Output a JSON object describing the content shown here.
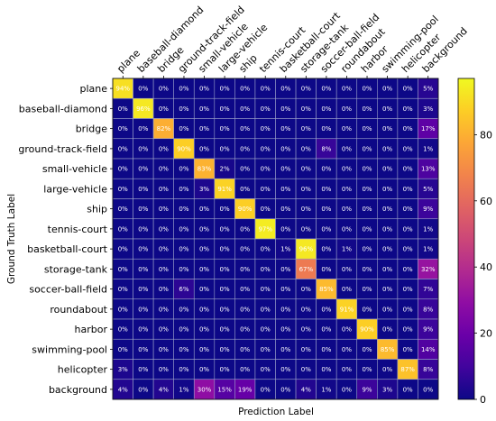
{
  "chart_data": {
    "type": "heatmap",
    "title": "",
    "xlabel": "Prediction Label",
    "ylabel": "Ground Truth Label",
    "classes": [
      "plane",
      "baseball-diamond",
      "bridge",
      "ground-track-field",
      "small-vehicle",
      "large-vehicle",
      "ship",
      "tennis-court",
      "basketball-court",
      "storage-tank",
      "soccer-ball-field",
      "roundabout",
      "harbor",
      "swimming-pool",
      "helicopter",
      "background"
    ],
    "values": [
      [
        94,
        0,
        0,
        0,
        0,
        0,
        0,
        0,
        0,
        0,
        0,
        0,
        0,
        0,
        0,
        5
      ],
      [
        0,
        96,
        0,
        0,
        0,
        0,
        0,
        0,
        0,
        0,
        0,
        0,
        0,
        0,
        0,
        3
      ],
      [
        0,
        0,
        82,
        0,
        0,
        0,
        0,
        0,
        0,
        0,
        0,
        0,
        0,
        0,
        0,
        17
      ],
      [
        0,
        0,
        0,
        90,
        0,
        0,
        0,
        0,
        0,
        0,
        8,
        0,
        0,
        0,
        0,
        1
      ],
      [
        0,
        0,
        0,
        0,
        83,
        2,
        0,
        0,
        0,
        0,
        0,
        0,
        0,
        0,
        0,
        13
      ],
      [
        0,
        0,
        0,
        0,
        3,
        91,
        0,
        0,
        0,
        0,
        0,
        0,
        0,
        0,
        0,
        5
      ],
      [
        0,
        0,
        0,
        0,
        0,
        0,
        90,
        0,
        0,
        0,
        0,
        0,
        0,
        0,
        0,
        9
      ],
      [
        0,
        0,
        0,
        0,
        0,
        0,
        0,
        97,
        0,
        0,
        0,
        0,
        0,
        0,
        0,
        1
      ],
      [
        0,
        0,
        0,
        0,
        0,
        0,
        0,
        0,
        1,
        96,
        0,
        1,
        0,
        0,
        0,
        1
      ],
      [
        0,
        0,
        0,
        0,
        0,
        0,
        0,
        0,
        0,
        67,
        0,
        0,
        0,
        0,
        0,
        32
      ],
      [
        0,
        0,
        0,
        6,
        0,
        0,
        0,
        0,
        0,
        0,
        85,
        0,
        0,
        0,
        0,
        7
      ],
      [
        0,
        0,
        0,
        0,
        0,
        0,
        0,
        0,
        0,
        0,
        0,
        91,
        0,
        0,
        0,
        8
      ],
      [
        0,
        0,
        0,
        0,
        0,
        0,
        0,
        0,
        0,
        0,
        0,
        0,
        90,
        0,
        0,
        9
      ],
      [
        0,
        0,
        0,
        0,
        0,
        0,
        0,
        0,
        0,
        0,
        0,
        0,
        0,
        85,
        0,
        14
      ],
      [
        3,
        0,
        0,
        0,
        0,
        0,
        0,
        0,
        0,
        0,
        0,
        0,
        0,
        0,
        87,
        8
      ],
      [
        4,
        0,
        4,
        1,
        30,
        15,
        19,
        0,
        0,
        4,
        1,
        0,
        9,
        3,
        0,
        0
      ]
    ],
    "cell_suffix": "%",
    "colormap": "plasma",
    "colorbar": {
      "range": [
        0,
        100
      ],
      "ticks": [
        0,
        20,
        40,
        60,
        80
      ]
    }
  }
}
